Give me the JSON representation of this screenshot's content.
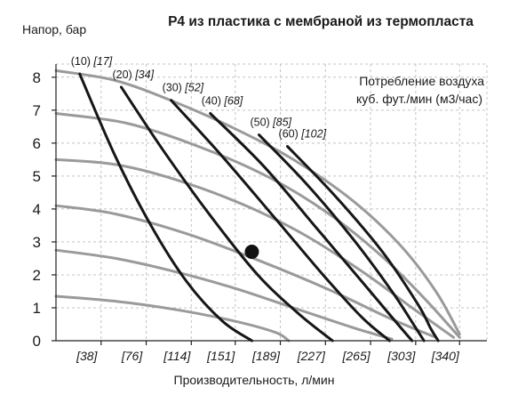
{
  "chart_data": {
    "type": "line",
    "title": "P4 из пластика с мембраной из термопласта",
    "ylabel": "Напор, бар",
    "xlabel": "Производительность, л/мин",
    "x_tick_labels": [
      "[38]",
      "[76]",
      "[114]",
      "[151]",
      "[189]",
      "[227]",
      "[265]",
      "[303]",
      "[340]"
    ],
    "x_tick_values": [
      38,
      76,
      114,
      151,
      189,
      227,
      265,
      303,
      340
    ],
    "y_tick_labels": [
      "0",
      "1",
      "2",
      "3",
      "4",
      "5",
      "6",
      "7",
      "8"
    ],
    "xlim": [
      0,
      363
    ],
    "ylim": [
      0,
      8.4
    ],
    "grid": true,
    "annotation": {
      "line1": "Потребление воздуха",
      "line2": "куб. фут./мин (м3/час)"
    },
    "performance_curves": [
      {
        "inlet_pressure": 8.2,
        "points": [
          [
            0,
            8.2
          ],
          [
            50,
            7.9
          ],
          [
            100,
            7.25
          ],
          [
            150,
            6.45
          ],
          [
            200,
            5.5
          ],
          [
            250,
            4.25
          ],
          [
            290,
            2.9
          ],
          [
            320,
            1.5
          ],
          [
            340,
            0.2
          ]
        ]
      },
      {
        "inlet_pressure": 6.9,
        "points": [
          [
            0,
            6.9
          ],
          [
            60,
            6.6
          ],
          [
            120,
            5.9
          ],
          [
            180,
            4.95
          ],
          [
            230,
            3.85
          ],
          [
            275,
            2.55
          ],
          [
            310,
            1.3
          ],
          [
            340,
            0.1
          ]
        ]
      },
      {
        "inlet_pressure": 5.5,
        "points": [
          [
            0,
            5.5
          ],
          [
            50,
            5.35
          ],
          [
            100,
            4.9
          ],
          [
            160,
            4.1
          ],
          [
            210,
            3.2
          ],
          [
            260,
            2.05
          ],
          [
            300,
            1.0
          ],
          [
            335,
            0.1
          ]
        ]
      },
      {
        "inlet_pressure": 4.1,
        "points": [
          [
            0,
            4.1
          ],
          [
            50,
            3.85
          ],
          [
            110,
            3.25
          ],
          [
            170,
            2.45
          ],
          [
            230,
            1.55
          ],
          [
            280,
            0.7
          ],
          [
            320,
            0.1
          ]
        ]
      },
      {
        "inlet_pressure": 2.75,
        "points": [
          [
            0,
            2.75
          ],
          [
            50,
            2.5
          ],
          [
            100,
            2.1
          ],
          [
            150,
            1.6
          ],
          [
            200,
            1.0
          ],
          [
            250,
            0.4
          ],
          [
            283,
            0.05
          ]
        ]
      },
      {
        "inlet_pressure": 1.35,
        "points": [
          [
            0,
            1.35
          ],
          [
            50,
            1.2
          ],
          [
            100,
            0.95
          ],
          [
            150,
            0.6
          ],
          [
            185,
            0.25
          ],
          [
            196,
            0.0
          ]
        ]
      }
    ],
    "air_consumption_curves": [
      {
        "label": "(10)",
        "label_italic": "[17]",
        "points": [
          [
            20,
            8.1
          ],
          [
            50,
            5.6
          ],
          [
            80,
            3.5
          ],
          [
            110,
            1.8
          ],
          [
            140,
            0.6
          ],
          [
            165,
            0.0
          ]
        ]
      },
      {
        "label": "(20)",
        "label_italic": "[34]",
        "points": [
          [
            55,
            7.7
          ],
          [
            90,
            5.8
          ],
          [
            130,
            3.8
          ],
          [
            170,
            2.0
          ],
          [
            205,
            0.8
          ],
          [
            233,
            0.0
          ]
        ]
      },
      {
        "label": "(30)",
        "label_italic": "[52]",
        "points": [
          [
            97,
            7.3
          ],
          [
            140,
            5.6
          ],
          [
            185,
            3.7
          ],
          [
            225,
            2.0
          ],
          [
            258,
            0.7
          ],
          [
            281,
            0.0
          ]
        ]
      },
      {
        "label": "(40)",
        "label_italic": "[68]",
        "points": [
          [
            130,
            6.9
          ],
          [
            175,
            5.3
          ],
          [
            220,
            3.4
          ],
          [
            260,
            1.7
          ],
          [
            288,
            0.5
          ],
          [
            300,
            0.0
          ]
        ]
      },
      {
        "label": "(50)",
        "label_italic": "[85]",
        "points": [
          [
            171,
            6.25
          ],
          [
            210,
            4.8
          ],
          [
            250,
            3.1
          ],
          [
            283,
            1.5
          ],
          [
            302,
            0.45
          ],
          [
            310,
            0.0
          ]
        ]
      },
      {
        "label": "(60)",
        "label_italic": "[102]",
        "points": [
          [
            195,
            5.9
          ],
          [
            235,
            4.4
          ],
          [
            275,
            2.7
          ],
          [
            305,
            1.1
          ],
          [
            316,
            0.35
          ],
          [
            322,
            0.0
          ]
        ]
      }
    ],
    "operating_point": {
      "x": 165,
      "y": 2.7
    }
  }
}
